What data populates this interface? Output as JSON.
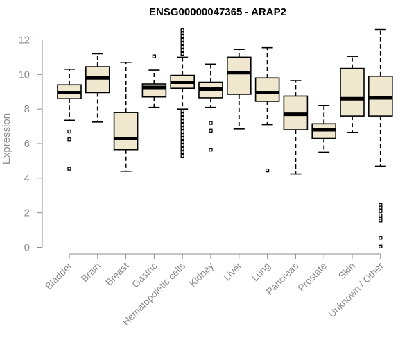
{
  "chart_data": {
    "type": "box",
    "title": "ENSG00000047365 - ARAP2",
    "xlabel": "",
    "ylabel": "Expression",
    "ylim": [
      0,
      12.6
    ],
    "yticks": [
      0,
      2,
      4,
      6,
      8,
      10,
      12
    ],
    "grid": false,
    "colors": {
      "box_fill": "#efe8cf",
      "box_stroke": "#000000",
      "axis": "#8c8c8c"
    },
    "categories": [
      "Bladder",
      "Brain",
      "Breast",
      "Gastric",
      "Hematopoietic cells",
      "Kidney",
      "Liver",
      "Lung",
      "Pancreas",
      "Prostate",
      "Skin",
      "Unknown / Other"
    ],
    "boxes": [
      {
        "label": "Bladder",
        "whisker_low": 7.35,
        "q1": 8.6,
        "median": 8.95,
        "q3": 9.4,
        "whisker_high": 10.3,
        "outliers": [
          6.7,
          6.25,
          4.55
        ]
      },
      {
        "label": "Brain",
        "whisker_low": 7.25,
        "q1": 8.95,
        "median": 9.8,
        "q3": 10.45,
        "whisker_high": 11.2,
        "outliers": []
      },
      {
        "label": "Breast",
        "whisker_low": 4.4,
        "q1": 5.65,
        "median": 6.3,
        "q3": 7.8,
        "whisker_high": 10.7,
        "outliers": []
      },
      {
        "label": "Gastric",
        "whisker_low": 8.1,
        "q1": 8.7,
        "median": 9.25,
        "q3": 9.45,
        "whisker_high": 10.25,
        "outliers": [
          11.05
        ]
      },
      {
        "label": "Hematopoietic cells",
        "whisker_low": 8.0,
        "q1": 9.2,
        "median": 9.55,
        "q3": 9.95,
        "whisker_high": 11.0,
        "outliers": [
          11.2,
          11.4,
          11.6,
          11.8,
          12.0,
          12.2,
          12.4,
          12.55,
          7.9,
          7.7,
          7.5,
          7.3,
          7.1,
          6.9,
          6.7,
          6.5,
          6.3,
          6.1,
          5.9,
          5.7,
          5.5,
          5.3
        ]
      },
      {
        "label": "Kidney",
        "whisker_low": 8.1,
        "q1": 8.65,
        "median": 9.15,
        "q3": 9.55,
        "whisker_high": 10.6,
        "outliers": [
          7.2,
          6.75,
          5.65
        ]
      },
      {
        "label": "Liver",
        "whisker_low": 6.85,
        "q1": 8.85,
        "median": 10.1,
        "q3": 11.0,
        "whisker_high": 11.45,
        "outliers": []
      },
      {
        "label": "Lung",
        "whisker_low": 7.1,
        "q1": 8.45,
        "median": 8.95,
        "q3": 9.8,
        "whisker_high": 11.55,
        "outliers": [
          4.45
        ]
      },
      {
        "label": "Pancreas",
        "whisker_low": 4.25,
        "q1": 6.8,
        "median": 7.7,
        "q3": 8.75,
        "whisker_high": 9.65,
        "outliers": []
      },
      {
        "label": "Prostate",
        "whisker_low": 5.5,
        "q1": 6.3,
        "median": 6.8,
        "q3": 7.15,
        "whisker_high": 8.2,
        "outliers": []
      },
      {
        "label": "Skin",
        "whisker_low": 6.65,
        "q1": 7.6,
        "median": 8.6,
        "q3": 10.35,
        "whisker_high": 11.05,
        "outliers": []
      },
      {
        "label": "Unknown / Other",
        "whisker_low": 4.7,
        "q1": 7.6,
        "median": 8.65,
        "q3": 9.9,
        "whisker_high": 12.6,
        "outliers": [
          2.45,
          2.3,
          2.1,
          1.85,
          1.65,
          1.55,
          0.55,
          0.05
        ]
      }
    ]
  }
}
